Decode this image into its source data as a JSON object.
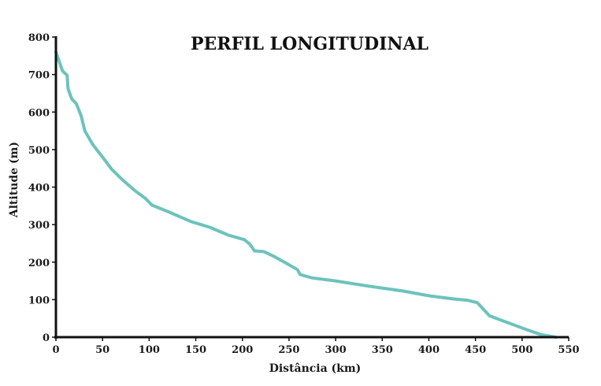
{
  "chart_data": {
    "type": "line",
    "title": "PERFIL LONGITUDINAL",
    "xlabel": "Distância (km)",
    "ylabel": "Altitude (m)",
    "xlim": [
      0,
      550
    ],
    "ylim": [
      0,
      800
    ],
    "xticks": [
      "0",
      "50",
      "100",
      "150",
      "200",
      "250",
      "300",
      "350",
      "400",
      "450",
      "500",
      "550"
    ],
    "yticks": [
      "0",
      "100",
      "200",
      "300",
      "400",
      "500",
      "600",
      "700",
      "800"
    ],
    "grid": false,
    "legend": "none",
    "line_color": "#6cc3bb",
    "series": [
      {
        "x": [
          0,
          7,
          12,
          13,
          17,
          22,
          27,
          31,
          40,
          50,
          60,
          72,
          84,
          96,
          103,
          120,
          145,
          165,
          185,
          202,
          208,
          213,
          223,
          234,
          245,
          259,
          262,
          275,
          300,
          333,
          372,
          401,
          426,
          442,
          452,
          465,
          505,
          520,
          536
        ],
        "y": [
          760,
          710,
          698,
          662,
          635,
          622,
          590,
          550,
          512,
          480,
          447,
          418,
          392,
          370,
          352,
          335,
          308,
          293,
          272,
          260,
          248,
          230,
          228,
          215,
          200,
          180,
          167,
          158,
          150,
          137,
          123,
          110,
          102,
          98,
          92,
          57,
          20,
          7,
          0
        ]
      }
    ]
  }
}
